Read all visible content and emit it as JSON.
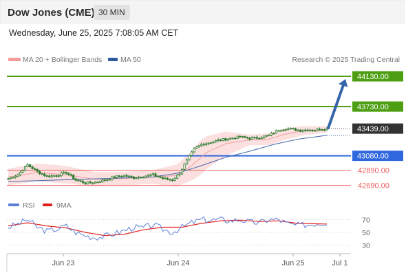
{
  "header": {
    "title": "Dow Jones (CME)",
    "timeframe": "30 MIN",
    "datetime": "Wednesday, June 25, 2025 7:08:05 AM CET"
  },
  "legend": {
    "ma20_bb": "MA 20 + Bollinger Bands",
    "ma50": "MA 50",
    "copyright": "Research © 2025 Trading Central"
  },
  "rsi_legend": {
    "rsi": "RSI",
    "ma9": "9MA"
  },
  "colors": {
    "green": "#4d9e12",
    "blue": "#2f67de",
    "red": "#ee5c5c",
    "candle": "#2f7d32",
    "bb_fill": "#fbd9d9",
    "ma20": "#f0a0a0",
    "ma50": "#3e66a8",
    "arrow": "#3464aa",
    "current": "#333333",
    "rsi": "#5b7fd6",
    "rsi_ma": "#e21f1f"
  },
  "chart_data": [
    {
      "type": "candlestick",
      "title": "Dow Jones (CME)",
      "timeframe": "30 MIN",
      "x_labels": [
        "Jun 23",
        "Jun 24",
        "Jun 25",
        "Jul 1"
      ],
      "ylim": [
        42550,
        44230
      ],
      "current_price": 43439.0,
      "levels": [
        {
          "value": 44130.0,
          "label": "44130.00",
          "kind": "resistance",
          "color": "#4d9e12"
        },
        {
          "value": 43730.0,
          "label": "43730.00",
          "kind": "resistance",
          "color": "#4d9e12"
        },
        {
          "value": 43080.0,
          "label": "43080.00",
          "kind": "pivot",
          "color": "#2f67de"
        },
        {
          "value": 42890.0,
          "label": "42890.00",
          "kind": "support",
          "color": "#ee5c5c"
        },
        {
          "value": 42690.0,
          "label": "42690.00",
          "kind": "support",
          "color": "#ee5c5c"
        }
      ],
      "target_arrow": {
        "from": 43439.0,
        "to": 44130.0
      },
      "close_path": [
        [
          0,
          42780
        ],
        [
          4,
          42830
        ],
        [
          8,
          42960
        ],
        [
          12,
          42870
        ],
        [
          16,
          42810
        ],
        [
          20,
          42820
        ],
        [
          24,
          42860
        ],
        [
          28,
          42760
        ],
        [
          32,
          42720
        ],
        [
          36,
          42730
        ],
        [
          40,
          42760
        ],
        [
          44,
          42800
        ],
        [
          48,
          42820
        ],
        [
          52,
          42790
        ],
        [
          56,
          42810
        ],
        [
          60,
          42830
        ],
        [
          64,
          42780
        ],
        [
          68,
          42760
        ],
        [
          71,
          42850
        ],
        [
          74,
          43020
        ],
        [
          77,
          43170
        ],
        [
          80,
          43230
        ],
        [
          84,
          43260
        ],
        [
          88,
          43290
        ],
        [
          92,
          43310
        ],
        [
          96,
          43330
        ],
        [
          100,
          43310
        ],
        [
          104,
          43320
        ],
        [
          108,
          43350
        ],
        [
          112,
          43420
        ],
        [
          115,
          43440
        ],
        [
          118,
          43430
        ],
        [
          121,
          43415
        ],
        [
          124,
          43425
        ],
        [
          127,
          43420
        ],
        [
          130,
          43435
        ],
        [
          132,
          43439
        ]
      ],
      "ma50_path": [
        [
          0,
          42740
        ],
        [
          20,
          42760
        ],
        [
          40,
          42780
        ],
        [
          60,
          42800
        ],
        [
          70,
          42850
        ],
        [
          80,
          42950
        ],
        [
          90,
          43060
        ],
        [
          100,
          43140
        ],
        [
          110,
          43230
        ],
        [
          120,
          43300
        ],
        [
          132,
          43350
        ]
      ],
      "ma20_path": [
        [
          0,
          42800
        ],
        [
          12,
          42860
        ],
        [
          24,
          42830
        ],
        [
          36,
          42770
        ],
        [
          48,
          42780
        ],
        [
          60,
          42800
        ],
        [
          70,
          42820
        ],
        [
          76,
          42950
        ],
        [
          82,
          43120
        ],
        [
          90,
          43240
        ],
        [
          100,
          43290
        ],
        [
          108,
          43300
        ],
        [
          114,
          43360
        ],
        [
          122,
          43410
        ],
        [
          132,
          43430
        ]
      ],
      "bb_half_width": [
        [
          0,
          110
        ],
        [
          20,
          120
        ],
        [
          40,
          90
        ],
        [
          60,
          90
        ],
        [
          72,
          160
        ],
        [
          80,
          230
        ],
        [
          90,
          160
        ],
        [
          100,
          70
        ],
        [
          110,
          80
        ],
        [
          118,
          70
        ],
        [
          132,
          40
        ]
      ]
    },
    {
      "type": "line",
      "title": "RSI",
      "series": [
        {
          "name": "RSI"
        },
        {
          "name": "9MA"
        }
      ],
      "ylim": [
        20,
        80
      ],
      "y_ticks": [
        70,
        50,
        30
      ],
      "rsi_path": [
        [
          0,
          58
        ],
        [
          4,
          63
        ],
        [
          8,
          70
        ],
        [
          12,
          58
        ],
        [
          16,
          52
        ],
        [
          20,
          55
        ],
        [
          24,
          60
        ],
        [
          28,
          50
        ],
        [
          32,
          45
        ],
        [
          36,
          42
        ],
        [
          40,
          44
        ],
        [
          44,
          48
        ],
        [
          48,
          53
        ],
        [
          52,
          58
        ],
        [
          56,
          57
        ],
        [
          60,
          62
        ],
        [
          64,
          55
        ],
        [
          68,
          50
        ],
        [
          72,
          58
        ],
        [
          76,
          65
        ],
        [
          80,
          70
        ],
        [
          84,
          69
        ],
        [
          88,
          70
        ],
        [
          92,
          68
        ],
        [
          96,
          70
        ],
        [
          100,
          66
        ],
        [
          104,
          65
        ],
        [
          108,
          70
        ],
        [
          112,
          70
        ],
        [
          116,
          63
        ],
        [
          120,
          61
        ],
        [
          124,
          62
        ],
        [
          128,
          64
        ],
        [
          132,
          65
        ]
      ],
      "rsi_ma_path": [
        [
          0,
          60
        ],
        [
          8,
          65
        ],
        [
          16,
          60
        ],
        [
          24,
          57
        ],
        [
          32,
          50
        ],
        [
          40,
          45
        ],
        [
          48,
          47
        ],
        [
          56,
          54
        ],
        [
          64,
          58
        ],
        [
          72,
          58
        ],
        [
          80,
          64
        ],
        [
          88,
          68
        ],
        [
          96,
          69
        ],
        [
          104,
          67
        ],
        [
          112,
          68
        ],
        [
          120,
          64
        ],
        [
          132,
          63
        ]
      ]
    }
  ]
}
